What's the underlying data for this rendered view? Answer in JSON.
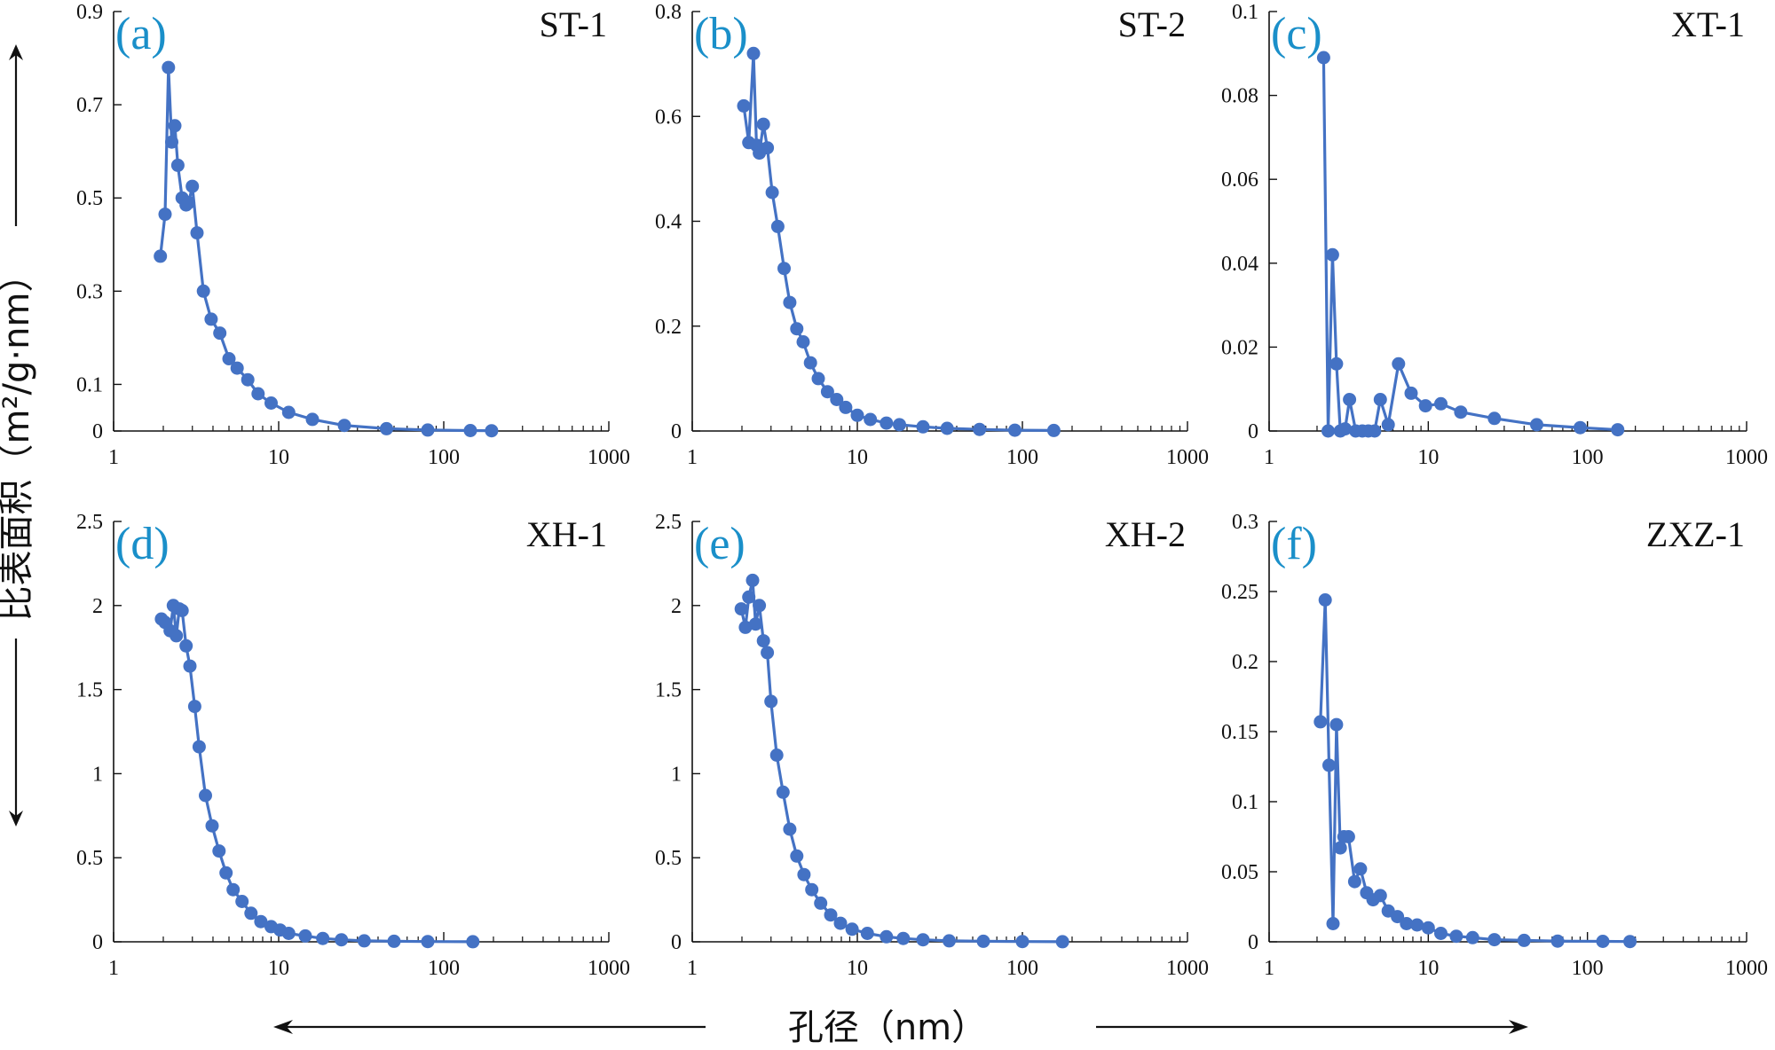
{
  "figure": {
    "y_label": "比表面积（m²/g·nm）",
    "x_label": "孔径（nm）",
    "series_color": "#4472c4",
    "panel_label_color": "#1a8fc9"
  },
  "chart_data": [
    {
      "type": "line",
      "panel_label": "(a)",
      "sample": "ST-1",
      "xscale": "log",
      "xlim": [
        1,
        1000
      ],
      "ylim": [
        0,
        0.9
      ],
      "x_ticks": [
        "1",
        "10",
        "100",
        "1000"
      ],
      "y_ticks": [
        "0",
        "0.1",
        "0.3",
        "0.5",
        "0.7",
        "0.9"
      ],
      "y_tick_values": [
        0,
        0.1,
        0.3,
        0.5,
        0.7,
        0.9
      ],
      "x": [
        1.92,
        2.05,
        2.15,
        2.25,
        2.35,
        2.45,
        2.6,
        2.75,
        2.85,
        3.0,
        3.2,
        3.5,
        3.9,
        4.4,
        5.0,
        5.6,
        6.5,
        7.5,
        9.0,
        11.5,
        16,
        25,
        45,
        80,
        145,
        195
      ],
      "y": [
        0.375,
        0.465,
        0.78,
        0.62,
        0.655,
        0.57,
        0.5,
        0.485,
        0.49,
        0.525,
        0.425,
        0.3,
        0.24,
        0.21,
        0.155,
        0.135,
        0.11,
        0.08,
        0.06,
        0.04,
        0.025,
        0.012,
        0.005,
        0.002,
        0.001,
        0.0005
      ]
    },
    {
      "type": "line",
      "panel_label": "(b)",
      "sample": "ST-2",
      "xscale": "log",
      "xlim": [
        1,
        1000
      ],
      "ylim": [
        0,
        0.8
      ],
      "x_ticks": [
        "1",
        "10",
        "100",
        "1000"
      ],
      "y_ticks": [
        "0",
        "0.2",
        "0.4",
        "0.6",
        "0.8"
      ],
      "y_tick_values": [
        0,
        0.2,
        0.4,
        0.6,
        0.8
      ],
      "x": [
        2.05,
        2.2,
        2.35,
        2.45,
        2.55,
        2.7,
        2.85,
        3.05,
        3.3,
        3.6,
        3.9,
        4.3,
        4.7,
        5.2,
        5.8,
        6.6,
        7.5,
        8.5,
        10,
        12,
        15,
        18,
        25,
        35,
        55,
        90,
        155
      ],
      "y": [
        0.62,
        0.55,
        0.72,
        0.545,
        0.53,
        0.585,
        0.54,
        0.455,
        0.39,
        0.31,
        0.245,
        0.195,
        0.17,
        0.13,
        0.1,
        0.075,
        0.06,
        0.045,
        0.03,
        0.022,
        0.015,
        0.012,
        0.008,
        0.005,
        0.003,
        0.0015,
        0.001
      ]
    },
    {
      "type": "line",
      "panel_label": "(c)",
      "sample": "XT-1",
      "xscale": "log",
      "xlim": [
        1,
        1000
      ],
      "ylim": [
        0,
        0.1
      ],
      "x_ticks": [
        "1",
        "10",
        "100",
        "1000"
      ],
      "y_ticks": [
        "0",
        "0.02",
        "0.04",
        "0.06",
        "0.08",
        "0.1"
      ],
      "y_tick_values": [
        0,
        0.02,
        0.04,
        0.06,
        0.08,
        0.1
      ],
      "x": [
        2.2,
        2.35,
        2.5,
        2.65,
        2.8,
        3.0,
        3.2,
        3.5,
        3.85,
        4.2,
        4.6,
        5.0,
        5.6,
        6.5,
        7.8,
        9.6,
        12,
        16,
        26,
        48,
        90,
        155
      ],
      "y": [
        0.089,
        0.0,
        0.042,
        0.016,
        0.0,
        0.0005,
        0.0075,
        0.0,
        0.0,
        0.0,
        0.0,
        0.0075,
        0.0015,
        0.016,
        0.009,
        0.006,
        0.0065,
        0.0045,
        0.003,
        0.0015,
        0.0008,
        0.0003
      ]
    },
    {
      "type": "line",
      "panel_label": "(d)",
      "sample": "XH-1",
      "xscale": "log",
      "xlim": [
        1,
        1000
      ],
      "ylim": [
        0,
        2.5
      ],
      "x_ticks": [
        "1",
        "10",
        "100",
        "1000"
      ],
      "y_ticks": [
        "0",
        "0.5",
        "1",
        "1.5",
        "2",
        "2.5"
      ],
      "y_tick_values": [
        0,
        0.5,
        1,
        1.5,
        2,
        2.5
      ],
      "x": [
        1.95,
        2.05,
        2.2,
        2.3,
        2.4,
        2.5,
        2.6,
        2.75,
        2.9,
        3.1,
        3.3,
        3.6,
        3.95,
        4.35,
        4.8,
        5.3,
        6.0,
        6.8,
        7.8,
        9.0,
        10.2,
        11.5,
        14.5,
        18.5,
        24,
        33,
        50,
        80,
        150
      ],
      "y": [
        1.92,
        1.9,
        1.85,
        2.0,
        1.82,
        1.98,
        1.97,
        1.76,
        1.64,
        1.4,
        1.16,
        0.87,
        0.69,
        0.54,
        0.41,
        0.31,
        0.24,
        0.17,
        0.12,
        0.09,
        0.07,
        0.05,
        0.035,
        0.02,
        0.012,
        0.006,
        0.003,
        0.0015,
        0.0005
      ]
    },
    {
      "type": "line",
      "panel_label": "(e)",
      "sample": "XH-2",
      "xscale": "log",
      "xlim": [
        1,
        1000
      ],
      "ylim": [
        0,
        2.5
      ],
      "x_ticks": [
        "1",
        "10",
        "100",
        "1000"
      ],
      "y_ticks": [
        "0",
        "0.5",
        "1",
        "1.5",
        "2",
        "2.5"
      ],
      "y_tick_values": [
        0,
        0.5,
        1,
        1.5,
        2,
        2.5
      ],
      "x": [
        1.98,
        2.1,
        2.2,
        2.32,
        2.42,
        2.55,
        2.7,
        2.85,
        3.0,
        3.25,
        3.55,
        3.9,
        4.3,
        4.75,
        5.3,
        6.0,
        6.9,
        7.9,
        9.3,
        11.5,
        15,
        19,
        25,
        36,
        58,
        100,
        175
      ],
      "y": [
        1.98,
        1.87,
        2.05,
        2.15,
        1.89,
        2.0,
        1.79,
        1.72,
        1.43,
        1.11,
        0.89,
        0.67,
        0.51,
        0.4,
        0.31,
        0.23,
        0.16,
        0.11,
        0.075,
        0.05,
        0.03,
        0.02,
        0.012,
        0.006,
        0.003,
        0.0015,
        0.0005
      ]
    },
    {
      "type": "line",
      "panel_label": "(f)",
      "sample": "ZXZ-1",
      "xscale": "log",
      "xlim": [
        1,
        1000
      ],
      "ylim": [
        0,
        0.3
      ],
      "x_ticks": [
        "1",
        "10",
        "100",
        "1000"
      ],
      "y_ticks": [
        "0",
        "0.05",
        "0.1",
        "0.15",
        "0.2",
        "0.25",
        "0.3"
      ],
      "y_tick_values": [
        0,
        0.05,
        0.1,
        0.15,
        0.2,
        0.25,
        0.3
      ],
      "x": [
        2.1,
        2.25,
        2.38,
        2.52,
        2.65,
        2.8,
        2.95,
        3.15,
        3.45,
        3.75,
        4.1,
        4.5,
        5.0,
        5.6,
        6.4,
        7.3,
        8.5,
        10,
        12,
        15,
        19,
        26,
        40,
        65,
        125,
        185
      ],
      "y": [
        0.157,
        0.244,
        0.126,
        0.013,
        0.155,
        0.067,
        0.075,
        0.075,
        0.043,
        0.052,
        0.035,
        0.03,
        0.033,
        0.022,
        0.018,
        0.013,
        0.012,
        0.01,
        0.006,
        0.004,
        0.003,
        0.0015,
        0.001,
        0.0005,
        0.0003,
        0.0002
      ]
    }
  ]
}
